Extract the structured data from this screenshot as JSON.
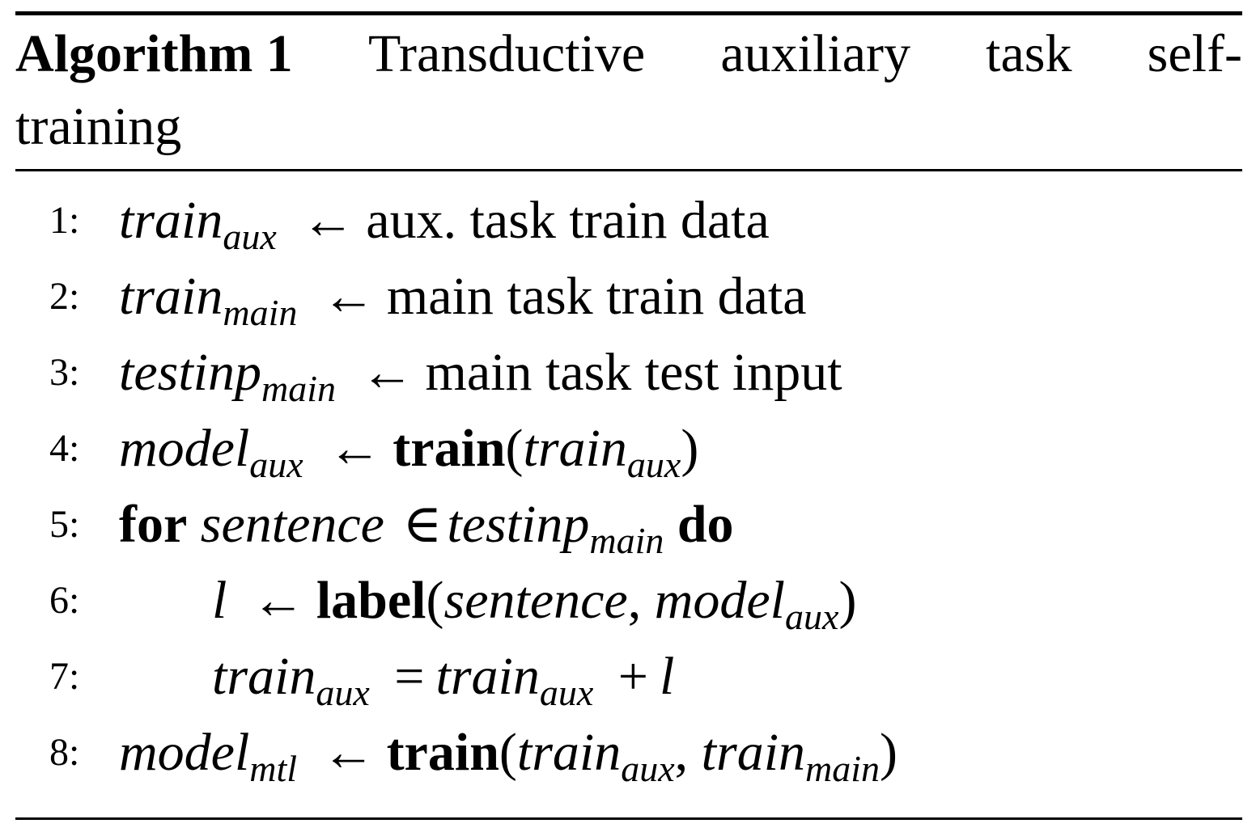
{
  "algorithm": {
    "label": "Algorithm 1",
    "caption_line1_parts": [
      "Transductive",
      "auxiliary",
      "task",
      "self-"
    ],
    "caption_line2": "training"
  },
  "lines": [
    {
      "num": "1:",
      "lhs": "train",
      "lhs_sub": "aux",
      "arrow": "←",
      "text": "aux. task train data"
    },
    {
      "num": "2:",
      "lhs": "train",
      "lhs_sub": "main",
      "arrow": "←",
      "text": "main task train data"
    },
    {
      "num": "3:",
      "lhs": "testinp",
      "lhs_sub": "main",
      "arrow": "←",
      "text": "main task test input"
    },
    {
      "num": "4:",
      "lhs": "model",
      "lhs_sub": "aux",
      "arrow": "←",
      "func": "train",
      "arg1": "train",
      "arg1_sub": "aux"
    },
    {
      "num": "5:",
      "kw_for": "for",
      "var": "sentence",
      "in": "∈",
      "set": "testinp",
      "set_sub": "main",
      "kw_do": "do"
    },
    {
      "num": "6:",
      "lhs": "l",
      "arrow": "←",
      "func": "label",
      "arg1": "sentence",
      "arg2": "model",
      "arg2_sub": "aux"
    },
    {
      "num": "7:",
      "lhs": "train",
      "lhs_sub": "aux",
      "eq": "=",
      "rhs": "train",
      "rhs_sub": "aux",
      "plus": "+",
      "rhs2": "l"
    },
    {
      "num": "8:",
      "lhs": "model",
      "lhs_sub": "mtl",
      "arrow": "←",
      "func": "train",
      "arg1": "train",
      "arg1_sub": "aux",
      "arg2": "train",
      "arg2_sub": "main"
    }
  ]
}
